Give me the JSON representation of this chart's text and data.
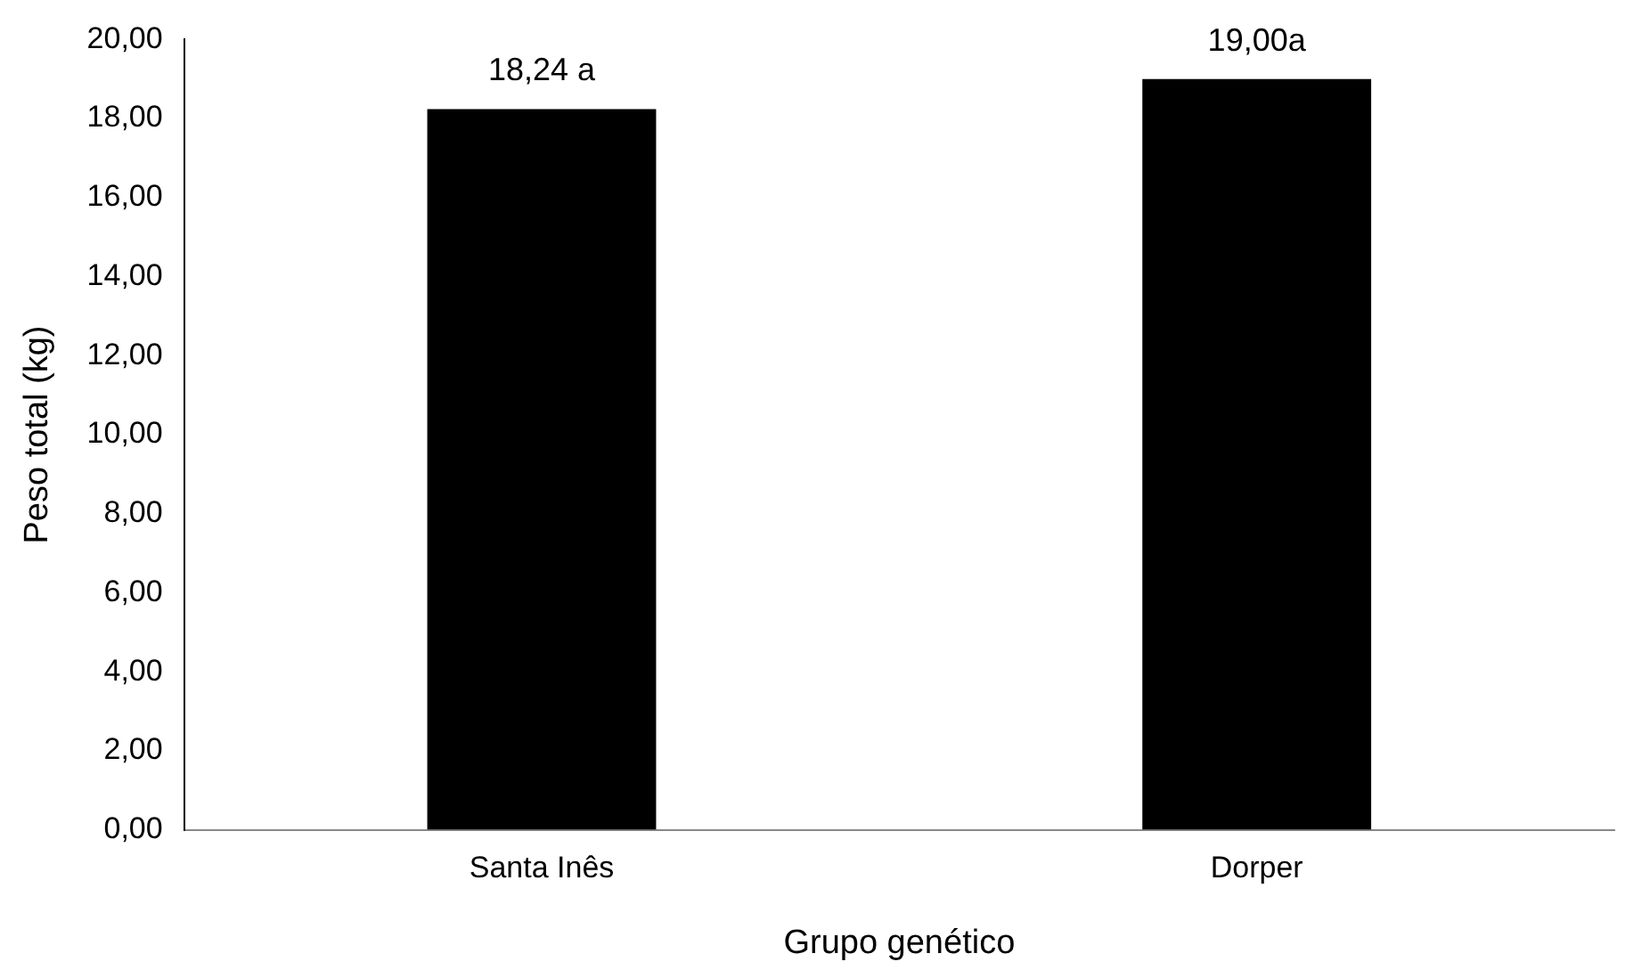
{
  "chart_data": {
    "type": "bar",
    "xlabel": "Grupo genético",
    "ylabel": "Peso total (kg)",
    "categories": [
      "Santa Inês",
      "Dorper"
    ],
    "values": [
      18.24,
      19.0
    ],
    "color": "#000000",
    "value_labels": [
      "18,24 a",
      "19,00a"
    ],
    "ylim": [
      0,
      20
    ],
    "yticks": [
      {
        "value": 0,
        "label": "0,00"
      },
      {
        "value": 2,
        "label": "2,00"
      },
      {
        "value": 4,
        "label": "4,00"
      },
      {
        "value": 6,
        "label": "6,00"
      },
      {
        "value": 8,
        "label": "8,00"
      },
      {
        "value": 10,
        "label": "10,00"
      },
      {
        "value": 12,
        "label": "12,00"
      },
      {
        "value": 14,
        "label": "14,00"
      },
      {
        "value": 16,
        "label": "16,00"
      },
      {
        "value": 18,
        "label": "18,00"
      },
      {
        "value": 20,
        "label": "20,00"
      }
    ],
    "grid": false,
    "legend": false
  }
}
